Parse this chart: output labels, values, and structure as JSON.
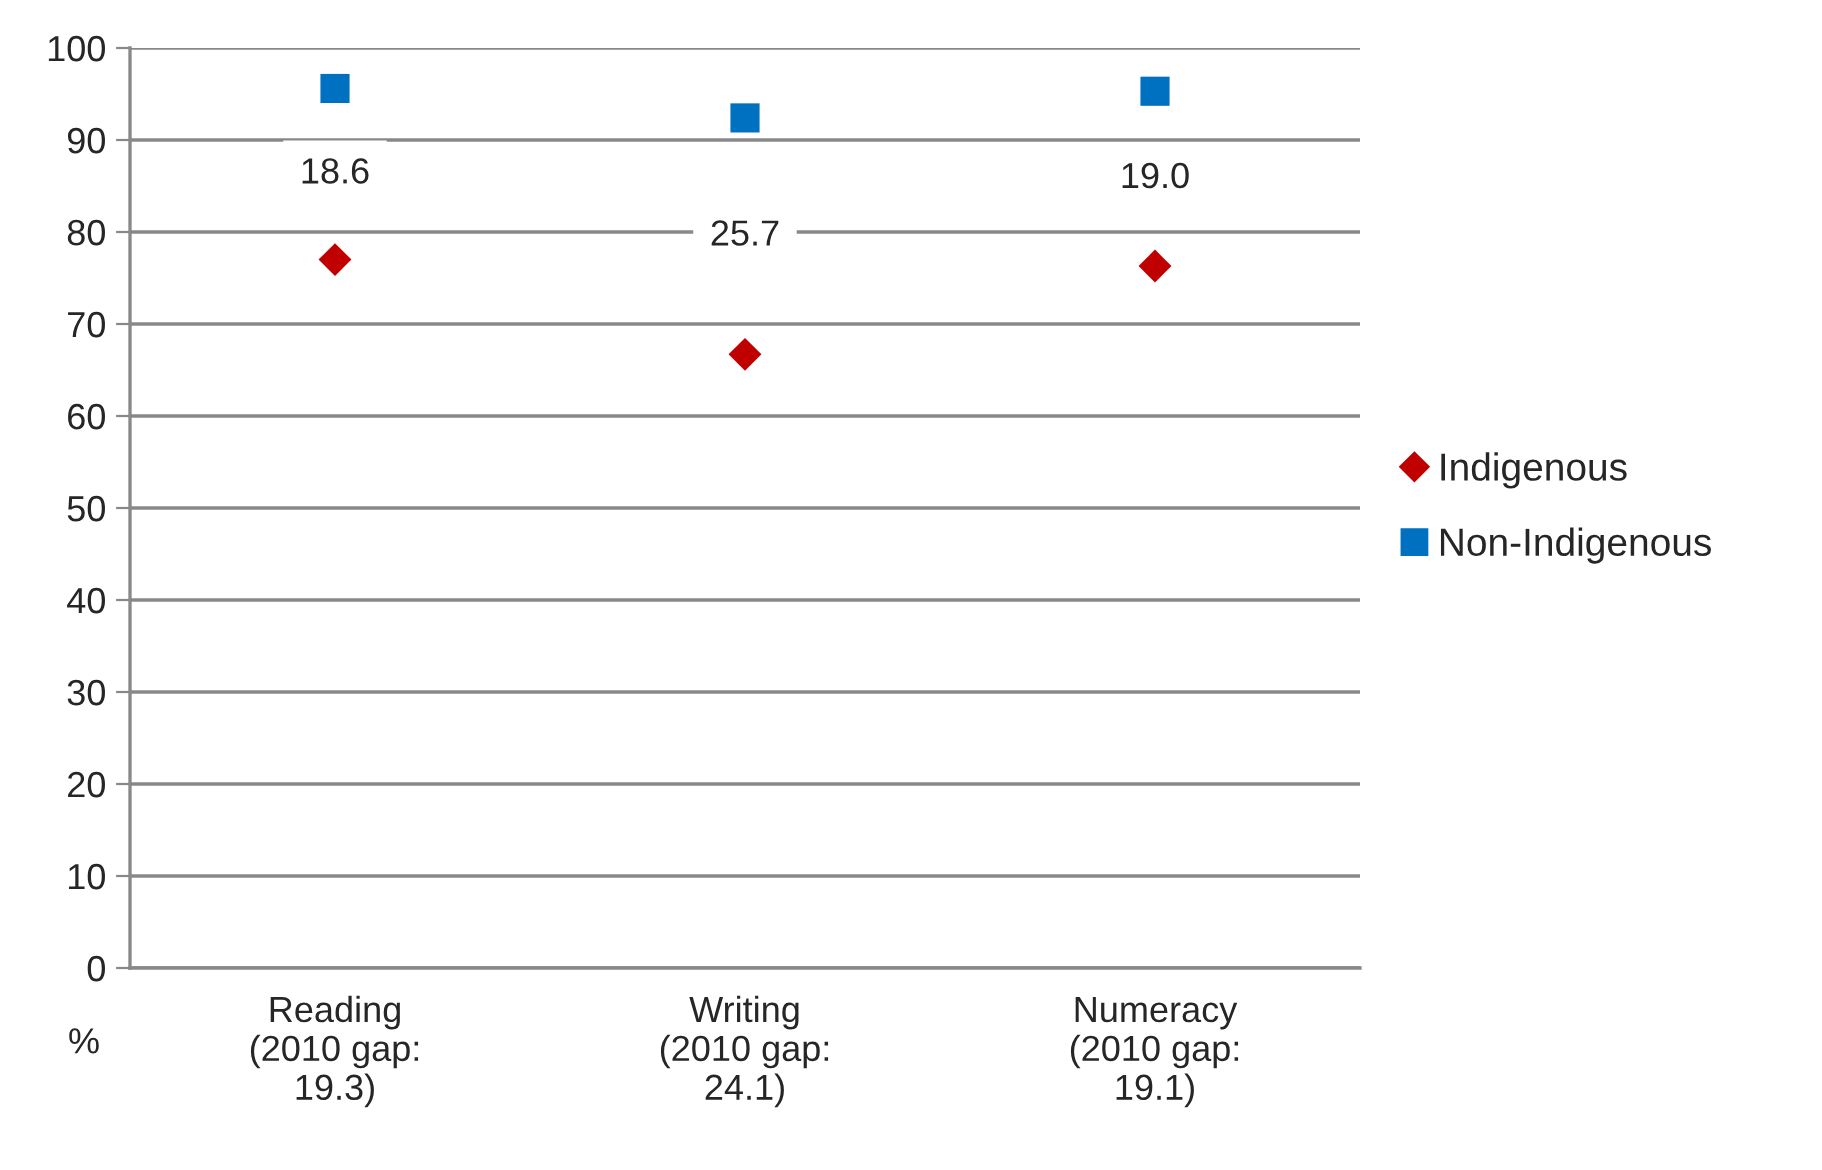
{
  "chart_data": {
    "type": "scatter",
    "categories": [
      "Reading\n(2010 gap:\n19.3)",
      "Writing\n(2010 gap:\n24.1)",
      "Numeracy\n(2010 gap:\n19.1)"
    ],
    "series": [
      {
        "name": "Indigenous",
        "color": "#c00000",
        "marker": "diamond",
        "values": [
          77.0,
          66.7,
          76.3
        ]
      },
      {
        "name": "Non-Indigenous",
        "color": "#0070c0",
        "marker": "square",
        "values": [
          95.6,
          92.4,
          95.3
        ]
      }
    ],
    "ylabel": "%",
    "ylim": [
      0,
      100
    ],
    "yticks": [
      0,
      10,
      20,
      30,
      40,
      50,
      60,
      70,
      80,
      90,
      100
    ],
    "grid": "y",
    "legend": "right",
    "annotations": [
      "18.6",
      "25.7",
      "19.0"
    ]
  }
}
